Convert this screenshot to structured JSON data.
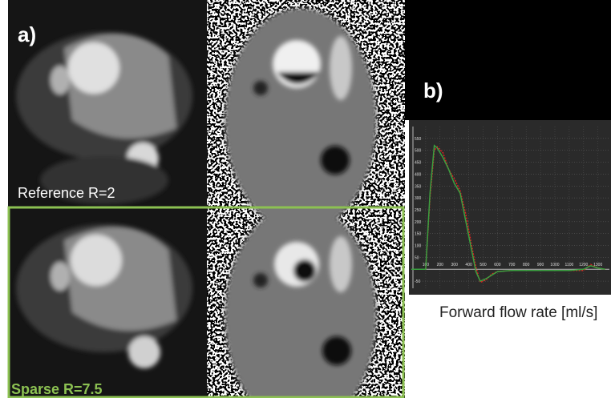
{
  "panels": {
    "a": {
      "label": "a)",
      "top_caption": "Reference  R=2",
      "bottom_caption": "Sparse R=7.5"
    },
    "b": {
      "label": "b)",
      "caption": "Forward flow rate [ml/s]"
    }
  },
  "chart_data": {
    "type": "line",
    "x": [
      0,
      50,
      100,
      130,
      160,
      180,
      220,
      260,
      300,
      340,
      380,
      420,
      450,
      480,
      520,
      560,
      600,
      700,
      800,
      900,
      1000,
      1100,
      1200,
      1250,
      1300,
      1350
    ],
    "series": [
      {
        "color": "#e02020",
        "values": [
          0,
          0,
          0,
          300,
          500,
          515,
          490,
          420,
          380,
          330,
          230,
          100,
          10,
          -55,
          -45,
          -20,
          -10,
          -5,
          -5,
          -5,
          -5,
          -5,
          -5,
          20,
          5,
          0
        ]
      },
      {
        "color": "#3aa040",
        "values": [
          0,
          0,
          0,
          320,
          520,
          510,
          470,
          420,
          360,
          320,
          200,
          80,
          -10,
          -50,
          -40,
          -25,
          -10,
          -5,
          -5,
          -5,
          -5,
          -5,
          0,
          15,
          5,
          0
        ]
      }
    ],
    "xlim": [
      0,
      1380
    ],
    "ylim": [
      -80,
      600
    ],
    "xticks": [
      100,
      200,
      300,
      400,
      500,
      600,
      700,
      800,
      900,
      1000,
      1100,
      1200,
      1300
    ],
    "yticks": [
      -50,
      50,
      100,
      150,
      200,
      250,
      300,
      350,
      400,
      450,
      500,
      550
    ],
    "grid": true
  }
}
